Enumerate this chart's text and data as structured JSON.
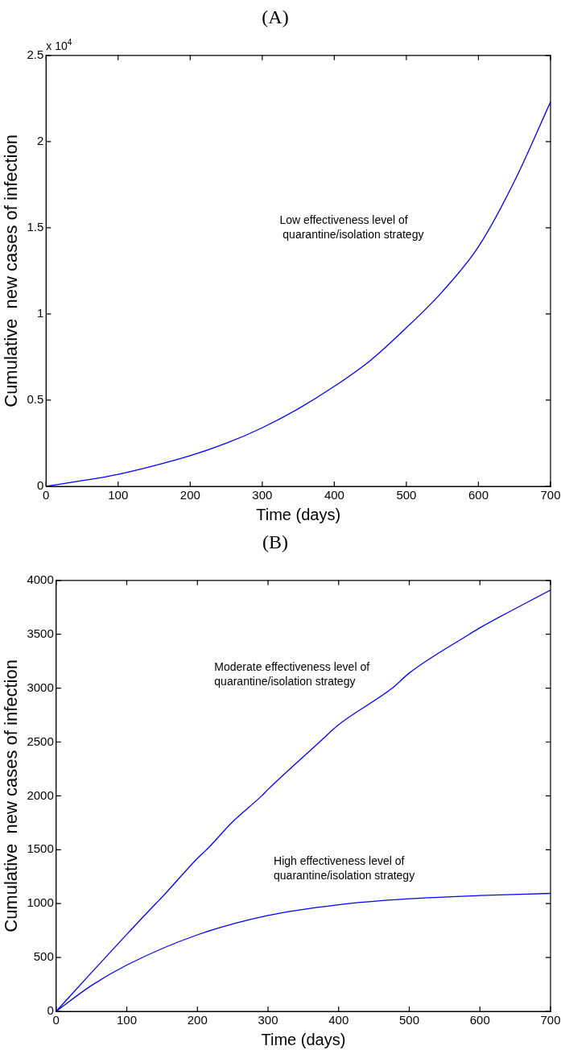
{
  "chart_data": [
    {
      "type": "line",
      "title": "(A)",
      "xlabel": "Time (days)",
      "ylabel": "Cumulative  new cases of infection",
      "x": [
        0,
        50,
        100,
        150,
        200,
        250,
        300,
        350,
        400,
        450,
        500,
        550,
        600,
        650,
        700
      ],
      "series": [
        {
          "color": "#0000ff",
          "values": [
            0,
            0.033,
            0.07,
            0.12,
            0.178,
            0.25,
            0.34,
            0.45,
            0.58,
            0.73,
            0.92,
            1.13,
            1.39,
            1.77,
            2.23
          ]
        }
      ],
      "xlim": [
        0,
        700
      ],
      "xticks": [
        0,
        100,
        200,
        300,
        400,
        500,
        600,
        700
      ],
      "ylim": [
        0,
        2.5
      ],
      "yticks": [
        0,
        0.5,
        1,
        1.5,
        2,
        2.5
      ],
      "annotations": [
        "x 10$^{4}$",
        "Low effectiveness level of\n quarantine/isolation strategy"
      ],
      "marker": "none",
      "line_style": "solid"
    },
    {
      "type": "line",
      "title": "(B)",
      "xlabel": "Time (days)",
      "ylabel": "Cumulative  new cases of infection",
      "x": [
        0,
        50,
        100,
        141,
        150,
        200,
        213,
        250,
        291,
        300,
        373,
        400,
        476,
        500,
        585,
        600,
        700
      ],
      "series": [
        {
          "color": "#0000ff",
          "values": [
            0,
            360,
            715,
            1000,
            1060,
            1420,
            1500,
            1760,
            2000,
            2060,
            2500,
            2660,
            3000,
            3140,
            3500,
            3560,
            3910
          ]
        },
        {
          "color": "#0000ff",
          "values": [
            0,
            240,
            430,
            null,
            null,
            710,
            null,
            null,
            null,
            890,
            null,
            990,
            null,
            1045,
            null,
            1075,
            1095
          ]
        }
      ],
      "xlim": [
        0,
        700
      ],
      "xticks": [
        0,
        100,
        200,
        300,
        400,
        500,
        600,
        700
      ],
      "ylim": [
        0,
        4000
      ],
      "yticks": [
        0,
        500,
        1000,
        1500,
        2000,
        2500,
        3000,
        3500,
        4000
      ],
      "annotations": [
        "Moderate effectiveness level of\nquarantine/isolation strategy",
        "High effectiveness level of\nquarantine/isolation strategy"
      ],
      "marker": "none",
      "line_style": "solid"
    }
  ]
}
